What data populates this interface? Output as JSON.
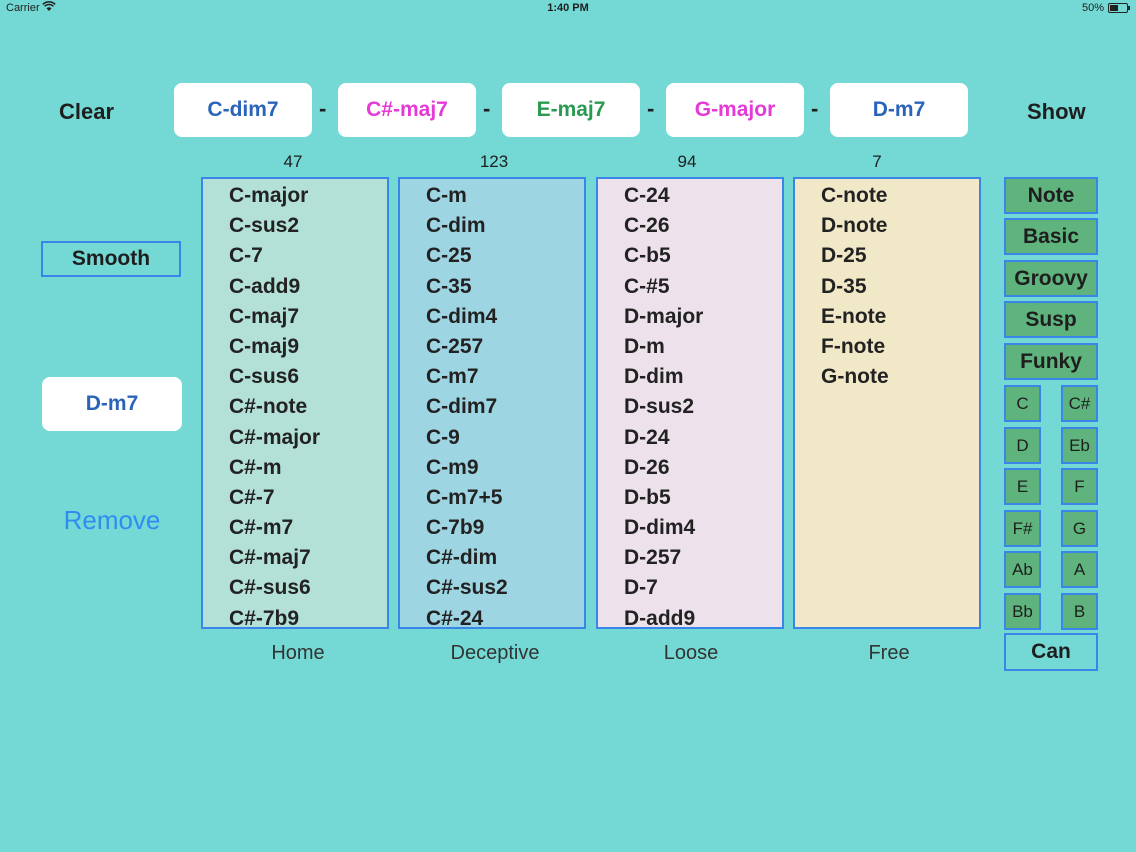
{
  "status_bar": {
    "carrier": "Carrier",
    "time": "1:40 PM",
    "battery": "50%",
    "battery_level": 0.5
  },
  "header": {
    "clear_label": "Clear",
    "show_label": "Show",
    "separator": "-"
  },
  "progression": [
    {
      "label": "C-dim7",
      "color": "#2a64b8"
    },
    {
      "label": "C#-maj7",
      "color": "#e43ad6"
    },
    {
      "label": "E-maj7",
      "color": "#2a9a52"
    },
    {
      "label": "G-major",
      "color": "#e43ad6"
    },
    {
      "label": "D-m7",
      "color": "#2a64b8"
    }
  ],
  "left_panel": {
    "smooth_label": "Smooth",
    "selected_chord": "D-m7",
    "remove_label": "Remove"
  },
  "columns": [
    {
      "label": "Home",
      "count": "47",
      "bg": "#b3e0d7",
      "items": [
        "C-major",
        "C-sus2",
        "C-7",
        "C-add9",
        "C-maj7",
        "C-maj9",
        "C-sus6",
        "C#-note",
        "C#-major",
        "C#-m",
        "C#-7",
        "C#-m7",
        "C#-maj7",
        "C#-sus6",
        "C#-7b9"
      ]
    },
    {
      "label": "Deceptive",
      "count": "123",
      "bg": "#9ed5e3",
      "items": [
        "C-m",
        "C-dim",
        "C-25",
        "C-35",
        "C-dim4",
        "C-257",
        "C-m7",
        "C-dim7",
        "C-9",
        "C-m9",
        "C-m7+5",
        "C-7b9",
        "C#-dim",
        "C#-sus2",
        "C#-24"
      ]
    },
    {
      "label": "Loose",
      "count": "94",
      "bg": "#ede2ec",
      "items": [
        "C-24",
        "C-26",
        "C-b5",
        "C-#5",
        "D-major",
        "D-m",
        "D-dim",
        "D-sus2",
        "D-24",
        "D-26",
        "D-b5",
        "D-dim4",
        "D-257",
        "D-7",
        "D-add9"
      ]
    },
    {
      "label": "Free",
      "count": "7",
      "bg": "#f1e8c8",
      "items": [
        "C-note",
        "D-note",
        "D-25",
        "D-35",
        "E-note",
        "F-note",
        "G-note"
      ]
    }
  ],
  "categories": [
    "Note",
    "Basic",
    "Groovy",
    "Susp",
    "Funky"
  ],
  "keys": [
    "C",
    "C#",
    "D",
    "Eb",
    "E",
    "F",
    "F#",
    "G",
    "Ab",
    "A",
    "Bb",
    "B"
  ],
  "cancel_label": "Can"
}
